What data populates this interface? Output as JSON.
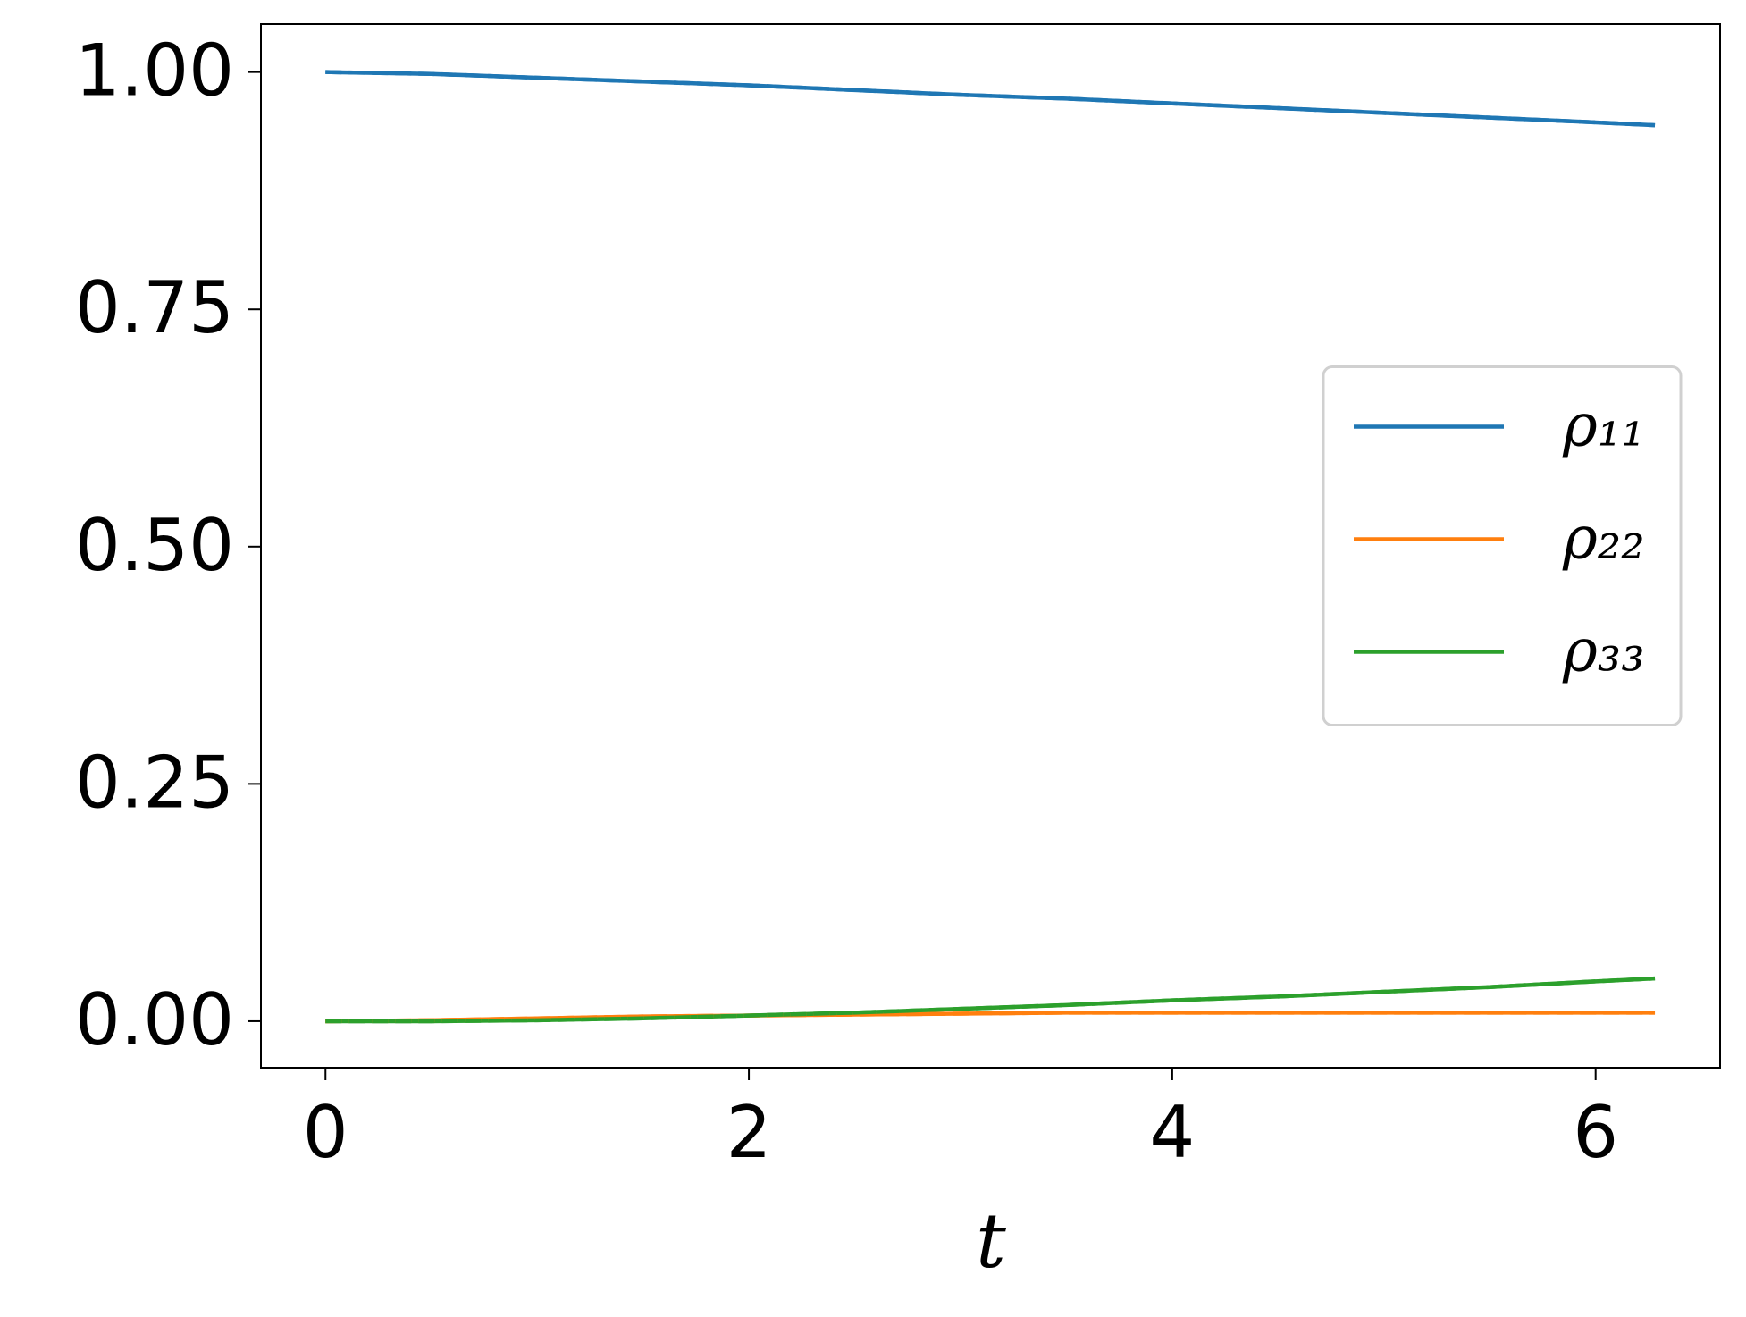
{
  "chart_data": {
    "type": "line",
    "x_label": "t",
    "x": [
      0,
      0.5,
      1,
      1.5,
      2,
      2.5,
      3,
      3.5,
      4,
      4.5,
      5,
      5.5,
      6,
      6.28
    ],
    "series": [
      {
        "name": "ρ₁₁",
        "color": "#1f77b4",
        "values": [
          1.0,
          0.998,
          0.994,
          0.99,
          0.986,
          0.981,
          0.976,
          0.972,
          0.967,
          0.962,
          0.957,
          0.952,
          0.947,
          0.944
        ]
      },
      {
        "name": "ρ₂₂",
        "color": "#ff7f0e",
        "values": [
          0,
          0.001,
          0.003,
          0.005,
          0.006,
          0.007,
          0.008,
          0.009,
          0.009,
          0.009,
          0.009,
          0.009,
          0.009,
          0.009
        ]
      },
      {
        "name": "ρ₃₃",
        "color": "#2ca02c",
        "values": [
          0,
          0,
          0.001,
          0.003,
          0.006,
          0.009,
          0.013,
          0.017,
          0.022,
          0.026,
          0.031,
          0.036,
          0.042,
          0.045
        ]
      },
      {
        "color": "#1f77b4",
        "dashed": true,
        "values": [
          1.0,
          0.998,
          0.994,
          0.99,
          0.986,
          0.981,
          0.976,
          0.972,
          0.967,
          0.962,
          0.957,
          0.952,
          0.947,
          0.944
        ]
      },
      {
        "color": "#ff7f0e",
        "dashed": true,
        "values": [
          0,
          0.001,
          0.003,
          0.005,
          0.006,
          0.007,
          0.008,
          0.009,
          0.009,
          0.009,
          0.009,
          0.009,
          0.009,
          0.009
        ]
      },
      {
        "color": "#2ca02c",
        "dashed": true,
        "values": [
          0,
          0,
          0.001,
          0.003,
          0.006,
          0.009,
          0.013,
          0.017,
          0.022,
          0.026,
          0.031,
          0.036,
          0.042,
          0.045
        ]
      }
    ],
    "xlim": [
      -0.305,
      6.588
    ],
    "ylim": [
      -0.049,
      1.0505
    ],
    "xticks": [
      0,
      2,
      4,
      6
    ],
    "yticks": [
      {
        "value": 0,
        "label": "0.00"
      },
      {
        "value": 0.25,
        "label": "0.25"
      },
      {
        "value": 0.5,
        "label": "0.50"
      },
      {
        "value": 0.75,
        "label": "0.75"
      },
      {
        "value": 1,
        "label": "1.00"
      }
    ],
    "grid": false,
    "legend": "center right"
  }
}
